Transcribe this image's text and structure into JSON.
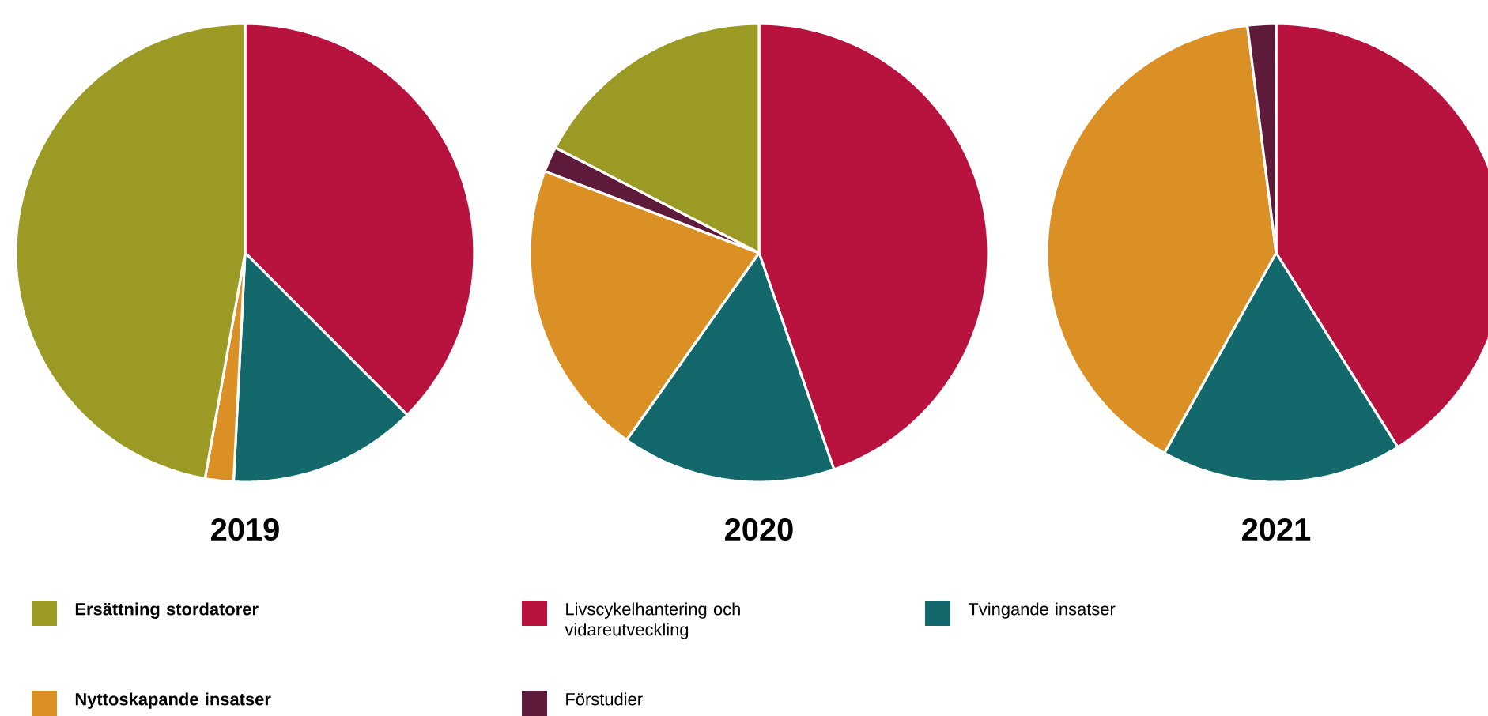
{
  "chart_data": [
    {
      "type": "pie",
      "title": "2019",
      "legend": "bottom",
      "categories": [
        "Livscykelhantering och vidareutveckling",
        "Tvingande insatser",
        "Nyttoskapande insatser",
        "Förstudier",
        "Ersättning stordatorer"
      ],
      "values": [
        37.5,
        13.3,
        2.0,
        0,
        47.2
      ],
      "colors": [
        "#b8123e",
        "#12686a",
        "#db9025",
        "#5e1a3a",
        "#9a9a24"
      ]
    },
    {
      "type": "pie",
      "title": "2020",
      "categories": [
        null,
        null,
        null,
        null,
        null
      ],
      "values": [
        44.7,
        15.1,
        21.0,
        1.8,
        17.4
      ],
      "colors": [
        "#b8123e",
        "#12686a",
        "#db9025",
        "#5e1a3a",
        "#9a9a24"
      ]
    },
    {
      "type": "pie",
      "title": "2021",
      "categories": [
        null,
        null,
        null,
        null,
        null
      ],
      "values": [
        41.1,
        17.0,
        39.9,
        2.0,
        0
      ],
      "colors": [
        "#b8123e",
        "#12686a",
        "#db9025",
        "#5e1a3a",
        "#9a9a24"
      ]
    }
  ]
}
